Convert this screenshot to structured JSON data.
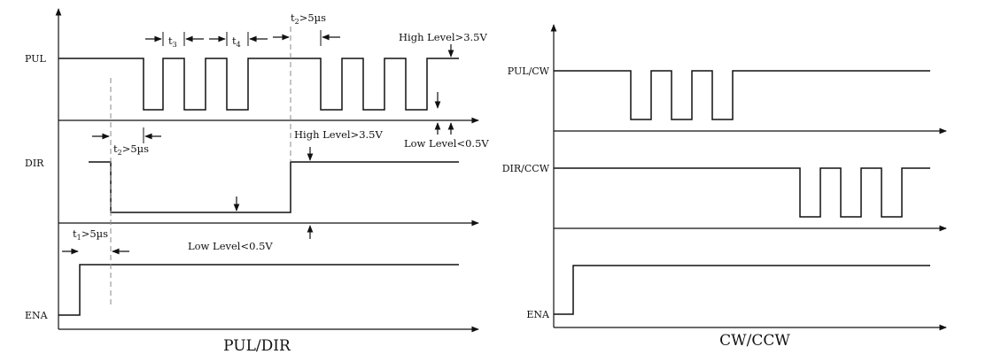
{
  "left_diagram": {
    "caption": "PUL/DIR",
    "signals": {
      "pul": "PUL",
      "dir": "DIR",
      "ena": "ENA"
    },
    "timing": {
      "t1": {
        "base": "t",
        "sub": "1",
        "rest": ">5µs"
      },
      "t2_top": {
        "base": "t",
        "sub": "2",
        "rest": ">5µs"
      },
      "t2_dir": {
        "base": "t",
        "sub": "2",
        "rest": ">5µs"
      },
      "t3": {
        "base": "t",
        "sub": "3"
      },
      "t4": {
        "base": "t",
        "sub": "4"
      }
    },
    "levels": {
      "pul_high": "High Level>3.5V",
      "pul_low": "Low Level<0.5V",
      "dir_high": "High Level>3.5V",
      "dir_low": "Low Level<0.5V"
    }
  },
  "right_diagram": {
    "caption": "CW/CCW",
    "signals": {
      "cw": "PUL/CW",
      "ccw": "DIR/CCW",
      "ena": "ENA"
    }
  },
  "colors": {
    "line": "#111111",
    "dashed": "#888888",
    "background": "#ffffff"
  }
}
